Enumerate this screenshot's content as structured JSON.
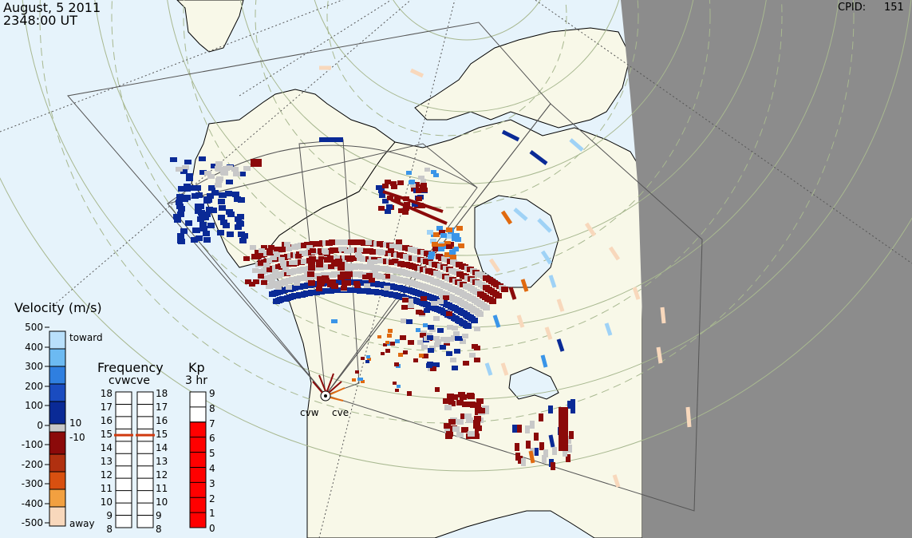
{
  "header": {
    "date": "August, 5 2011",
    "time": "2348:00 UT",
    "cpid_label": "CPID:",
    "cpid_value": "151"
  },
  "radars": {
    "site_labels": [
      "cvw",
      "cve"
    ]
  },
  "velocity_legend": {
    "title": "Velocity (m/s)",
    "ticks": [
      "500",
      "400",
      "300",
      "200",
      "100",
      "0",
      "-100",
      "-200",
      "-300",
      "-400",
      "-500"
    ],
    "toward_label": "toward",
    "away_label": "away",
    "ground_scatter_upper": "10",
    "ground_scatter_lower": "-10",
    "colors": {
      "toward_strong": "#9fd2f6",
      "toward_mid": "#3a95e8",
      "toward_weak": "#0a2a96",
      "ground_scatter": "#c8c8c8",
      "away_weak": "#8b0a0a",
      "away_mid": "#e06a10",
      "away_strong": "#f8d8bc"
    }
  },
  "frequency_panel": {
    "title": "Frequency",
    "subtitle": "cvwcve",
    "ticks": [
      "18",
      "17",
      "16",
      "15",
      "14",
      "13",
      "12",
      "11",
      "10",
      "9",
      "8"
    ],
    "cvw_mhz": 15,
    "cve_mhz": 15,
    "marker_color": "#d03a10"
  },
  "kp_panel": {
    "title": "Kp",
    "subtitle": "3 hr",
    "ticks": [
      "9",
      "8",
      "7",
      "6",
      "5",
      "4",
      "3",
      "2",
      "1",
      "0"
    ],
    "value": 7,
    "fill_color": "#ff0000"
  },
  "map": {
    "land_color": "#f8f8e8",
    "ocean_color": "#e6f3fb",
    "night_color": "#8c8c8c",
    "coast_color": "#000000",
    "grid_color": "#a8b890"
  }
}
